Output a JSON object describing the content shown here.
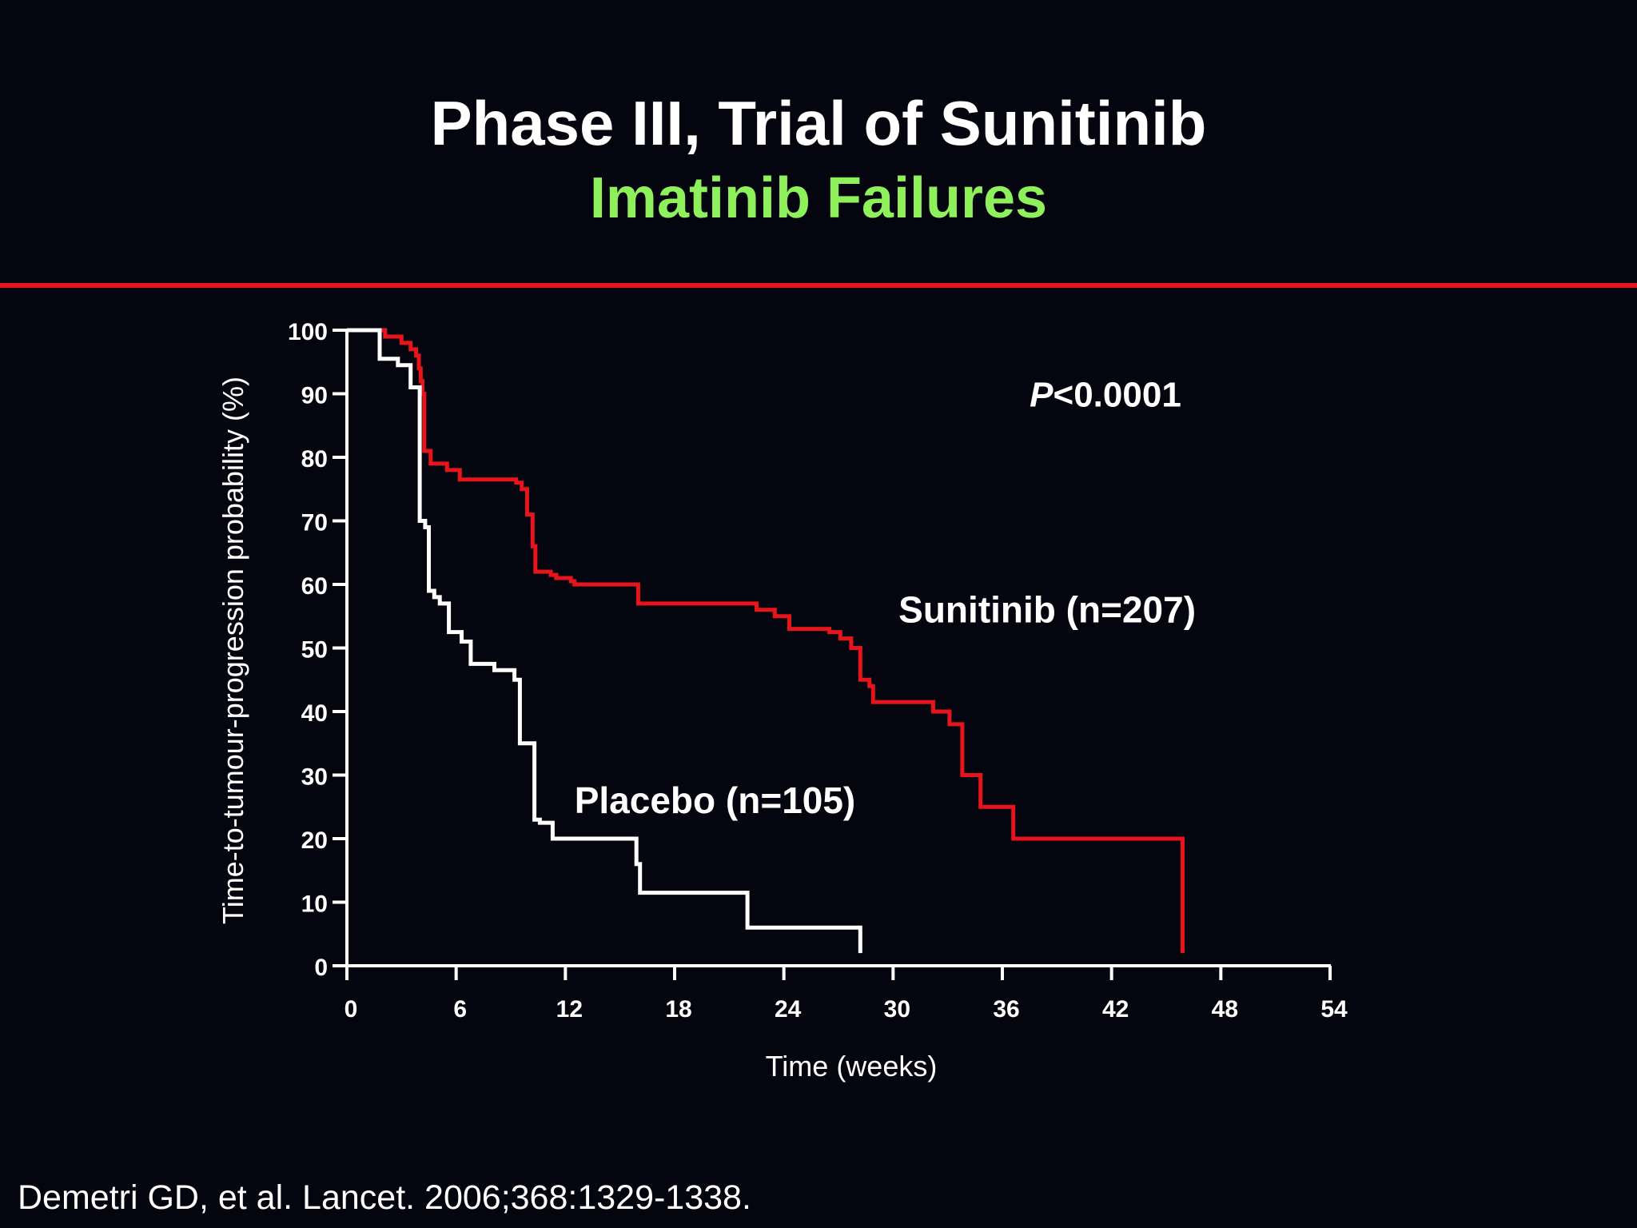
{
  "slide": {
    "title": "Phase III, Trial of Sunitinib",
    "subtitle": "Imatinib Failures",
    "citation": "Demetri GD, et al. Lancet. 2006;368:1329-1338.",
    "divider_color": "#e8141b",
    "background_color": "#050510",
    "subtitle_color": "#8ef05a"
  },
  "chart_data": {
    "type": "line",
    "title": "",
    "xlabel": "Time (weeks)",
    "ylabel": "Time-to-tumour-progression probability (%)",
    "xlim": [
      0,
      54
    ],
    "ylim": [
      0,
      100
    ],
    "x_ticks": [
      0,
      6,
      12,
      18,
      24,
      30,
      36,
      42,
      48,
      54
    ],
    "y_ticks": [
      0,
      10,
      20,
      30,
      40,
      50,
      60,
      70,
      80,
      90,
      100
    ],
    "grid": false,
    "legend": "none",
    "step": true,
    "annotation": {
      "italic": "P",
      "text": "<0.0001",
      "x": 37.5,
      "y": 88
    },
    "series": [
      {
        "name": "Sunitinib (n=207)",
        "color": "#e8141b",
        "label_pos": {
          "x": 30.3,
          "y": 54
        },
        "points": [
          [
            0,
            100
          ],
          [
            2.1,
            99
          ],
          [
            3.0,
            98
          ],
          [
            3.5,
            97
          ],
          [
            3.8,
            96
          ],
          [
            3.95,
            94
          ],
          [
            4.05,
            92
          ],
          [
            4.15,
            90
          ],
          [
            4.25,
            81
          ],
          [
            4.6,
            79
          ],
          [
            5.5,
            78
          ],
          [
            6.2,
            77
          ],
          [
            6.2,
            76.5
          ],
          [
            8.3,
            76.5
          ],
          [
            9.3,
            76
          ],
          [
            9.6,
            75
          ],
          [
            9.9,
            71
          ],
          [
            10.2,
            66
          ],
          [
            10.35,
            62
          ],
          [
            11.2,
            61.5
          ],
          [
            11.5,
            61
          ],
          [
            12.3,
            60.5
          ],
          [
            12.5,
            60
          ],
          [
            16.0,
            57
          ],
          [
            22.5,
            56
          ],
          [
            23.5,
            55
          ],
          [
            24.3,
            53
          ],
          [
            26.5,
            52.5
          ],
          [
            27.1,
            51.5
          ],
          [
            27.7,
            50
          ],
          [
            28.2,
            45
          ],
          [
            28.7,
            44
          ],
          [
            28.9,
            41.5
          ],
          [
            32.2,
            40
          ],
          [
            33.1,
            38
          ],
          [
            33.8,
            30
          ],
          [
            34.8,
            25
          ],
          [
            36.6,
            20
          ],
          [
            45.9,
            2
          ]
        ]
      },
      {
        "name": "Placebo (n=105)",
        "color": "#ffffff",
        "label_pos": {
          "x": 12.5,
          "y": 24
        },
        "points": [
          [
            0,
            100
          ],
          [
            1.8,
            95.5
          ],
          [
            2.8,
            94.5
          ],
          [
            3.5,
            91
          ],
          [
            4.0,
            70
          ],
          [
            4.3,
            69
          ],
          [
            4.5,
            59
          ],
          [
            4.8,
            58
          ],
          [
            5.1,
            57
          ],
          [
            5.6,
            52.5
          ],
          [
            6.3,
            51
          ],
          [
            6.8,
            47.5
          ],
          [
            8.1,
            46.5
          ],
          [
            9.2,
            45
          ],
          [
            9.5,
            35
          ],
          [
            10.3,
            23
          ],
          [
            10.6,
            22.5
          ],
          [
            11.3,
            20
          ],
          [
            15.9,
            16
          ],
          [
            16.1,
            11.5
          ],
          [
            22.0,
            6
          ],
          [
            28.2,
            2
          ]
        ]
      }
    ]
  }
}
